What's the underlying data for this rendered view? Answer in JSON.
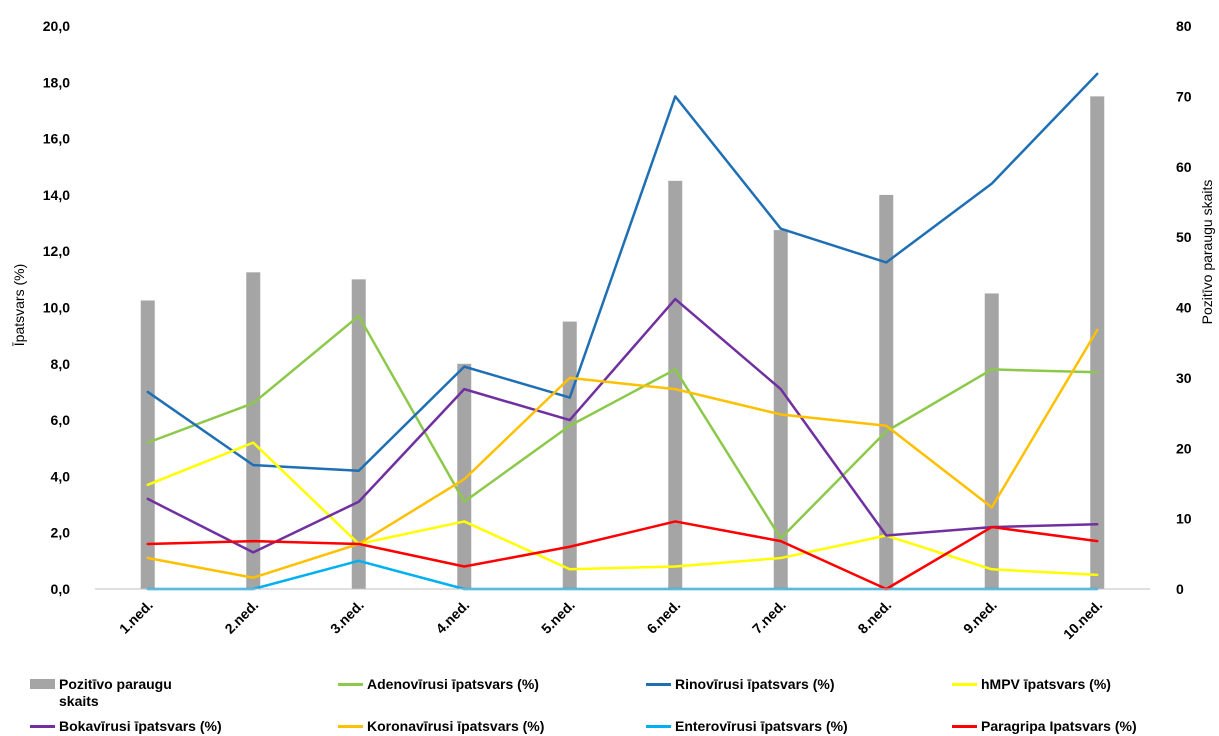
{
  "chart_data": {
    "type": "bar+line",
    "categories": [
      "1.ned.",
      "2.ned.",
      "3.ned.",
      "4.ned.",
      "5.ned.",
      "6.ned.",
      "7.ned.",
      "8.ned.",
      "9.ned.",
      "10.ned."
    ],
    "bar_series": {
      "name": "Pozitīvo paraugu skaits",
      "color": "#a5a5a5",
      "axis": "right",
      "values": [
        41,
        45,
        44,
        32,
        38,
        58,
        51,
        56,
        42,
        70
      ]
    },
    "series": [
      {
        "name": "Adenovīrusi īpatsvars (%)",
        "color": "#8cc94b",
        "values": [
          5.2,
          6.6,
          9.7,
          3.1,
          5.8,
          7.8,
          1.8,
          5.6,
          7.8,
          7.7
        ]
      },
      {
        "name": "Rinovīrusi īpatsvars (%)",
        "color": "#1f6fb5",
        "values": [
          7.0,
          4.4,
          4.2,
          7.9,
          6.8,
          17.5,
          12.8,
          11.6,
          14.4,
          18.3
        ]
      },
      {
        "name": "hMPV īpatsvars (%)",
        "color": "#ffff00",
        "values": [
          3.7,
          5.2,
          1.6,
          2.4,
          0.7,
          0.8,
          1.1,
          1.9,
          0.7,
          0.5
        ]
      },
      {
        "name": "Bokavīrusi īpatsvars (%)",
        "color": "#7030a0",
        "values": [
          3.2,
          1.3,
          3.1,
          7.1,
          6.0,
          10.3,
          7.1,
          1.9,
          2.2,
          2.3
        ]
      },
      {
        "name": "Koronavīrusi īpatsvars (%)",
        "color": "#ffc000",
        "values": [
          1.1,
          0.4,
          1.6,
          3.9,
          7.5,
          7.1,
          6.2,
          5.8,
          2.9,
          9.2
        ]
      },
      {
        "name": "Enterovīrusi īpatsvars (%)",
        "color": "#00b0f0",
        "values": [
          0,
          0,
          1.0,
          0,
          0,
          0,
          0,
          0,
          0,
          0
        ]
      },
      {
        "name": "Paragripa Ipatsvars (%)",
        "color": "#ff0000",
        "values": [
          1.6,
          1.7,
          1.6,
          0.8,
          1.5,
          2.4,
          1.7,
          0,
          2.2,
          1.7
        ]
      }
    ],
    "ylabel": "Īpatsvars (%)",
    "ylabel_right": "Pozitīvo paraugu skaits",
    "ylim": [
      0,
      20
    ],
    "ylim_right": [
      0,
      80
    ],
    "yticks": [
      "0,0",
      "2,0",
      "4,0",
      "6,0",
      "8,0",
      "10,0",
      "12,0",
      "14,0",
      "16,0",
      "18,0",
      "20,0"
    ],
    "yticks_right": [
      "0",
      "10",
      "20",
      "30",
      "40",
      "50",
      "60",
      "70",
      "80"
    ],
    "grid": false,
    "legend_position": "bottom"
  },
  "legend": {
    "items": [
      {
        "label": "Pozitīvo paraugu skaits",
        "kind": "bar",
        "color": "#a5a5a5"
      },
      {
        "label": "Adenovīrusi īpatsvars (%)",
        "kind": "line",
        "color": "#8cc94b"
      },
      {
        "label": "Rinovīrusi īpatsvars (%)",
        "kind": "line",
        "color": "#1f6fb5"
      },
      {
        "label": "hMPV īpatsvars (%)",
        "kind": "line",
        "color": "#ffff00"
      },
      {
        "label": "Bokavīrusi īpatsvars (%)",
        "kind": "line",
        "color": "#7030a0"
      },
      {
        "label": "Koronavīrusi īpatsvars (%)",
        "kind": "line",
        "color": "#ffc000"
      },
      {
        "label": "Enterovīrusi īpatsvars (%)",
        "kind": "line",
        "color": "#00b0f0"
      },
      {
        "label": "Paragripa Ipatsvars (%)",
        "kind": "line",
        "color": "#ff0000"
      }
    ]
  }
}
